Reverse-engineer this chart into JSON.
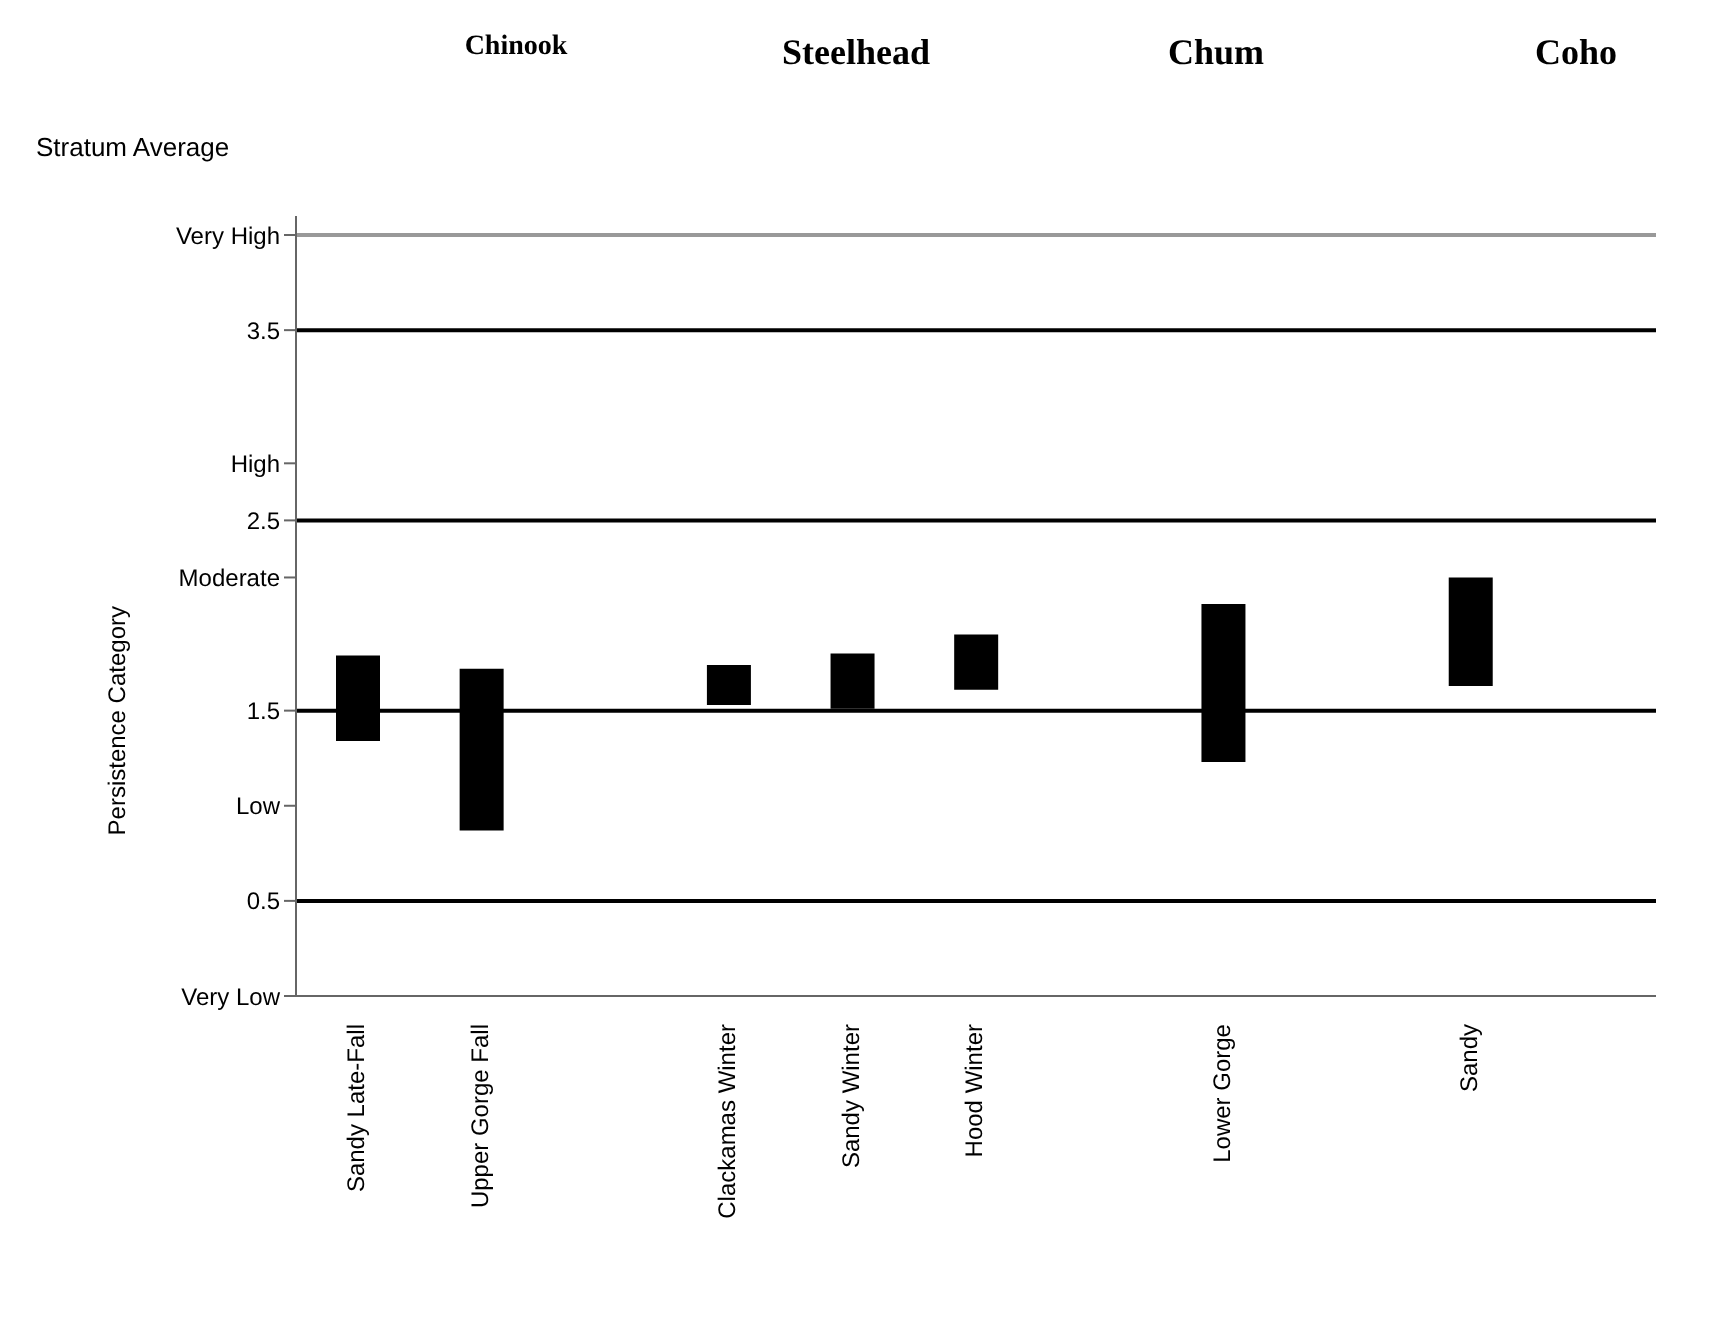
{
  "chart_data": {
    "type": "bar",
    "title": "Stratum Average",
    "ylabel": "Persistence Category",
    "annotations": [
      "Chinook",
      "Steelhead",
      "Chum",
      "Coho"
    ],
    "categories": [
      "Sandy Late-Fall",
      "Upper Gorge Fall",
      null,
      "Clackamas Winter",
      "Sandy Winter",
      "Hood Winter",
      null,
      "Lower Gorge",
      null,
      "Sandy",
      null
    ],
    "base": [
      1.34,
      0.87,
      null,
      1.53,
      1.51,
      1.61,
      null,
      1.23,
      null,
      1.63,
      null
    ],
    "values": [
      0.45,
      0.85,
      null,
      0.21,
      0.29,
      0.29,
      null,
      0.83,
      null,
      0.57,
      null
    ],
    "color": "#000000",
    "ylim": [
      0,
      4.1
    ],
    "yticks": [
      {
        "value": 0,
        "label": "Very Low"
      },
      0.5,
      {
        "value": 1,
        "label": "Low"
      },
      1.5,
      {
        "value": 2.2,
        "label": "Moderate"
      },
      2.5,
      {
        "value": 2.8,
        "label": "High"
      },
      3.5,
      {
        "value": 4,
        "label": "Very High"
      }
    ],
    "ref_lines": [
      {
        "axis": "y",
        "value": 0.5,
        "color": "#000000"
      },
      {
        "axis": "y",
        "value": 1.5,
        "color": "#000000"
      },
      {
        "axis": "y",
        "value": 2.5,
        "color": "#000000"
      },
      {
        "axis": "y",
        "value": 3.5,
        "color": "#000000"
      },
      {
        "axis": "y",
        "value": 4,
        "color": "#999999"
      }
    ],
    "legend": false
  }
}
